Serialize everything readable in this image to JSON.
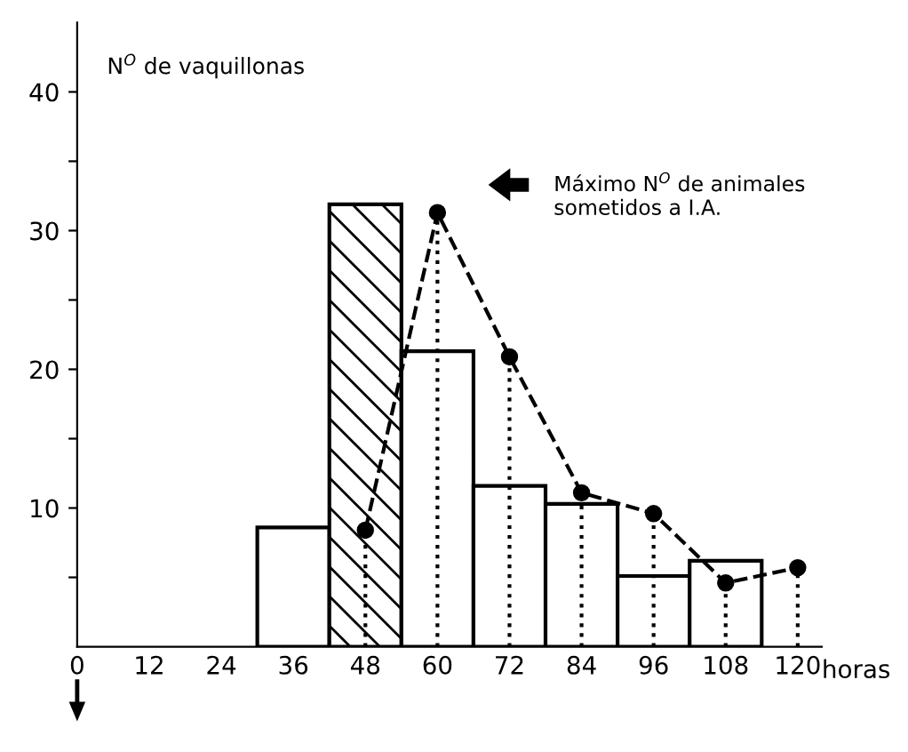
{
  "chart_data": {
    "type": "histogram",
    "ylabel": "N$^{O}$ de vaquillonas",
    "xlabel": "horas",
    "series": [
      {
        "type": "histogram",
        "bins": [
          30,
          42,
          54,
          66,
          78,
          90,
          102,
          114
        ],
        "values": [
          8.6,
          31.9,
          21.3,
          11.6,
          10.3,
          5.1,
          6.2
        ],
        "colors": [
          "#ffffff",
          "#000000",
          "#ffffff",
          "#ffffff",
          "#ffffff",
          "#ffffff",
          "#ffffff"
        ]
      },
      {
        "type": "line",
        "x": [
          48,
          60,
          72,
          84,
          96,
          108,
          120
        ],
        "values": [
          8.4,
          31.3,
          20.9,
          11.1,
          9.6,
          4.6,
          5.7
        ],
        "color": "#000000",
        "line_style": "dashed",
        "marker": "circle",
        "errors": [
          [
            0,
            8.4
          ],
          [
            0,
            31.3
          ],
          [
            0,
            20.9
          ],
          [
            0,
            11.1
          ],
          [
            0,
            9.6
          ],
          [
            0,
            4.6
          ],
          [
            0,
            5.7
          ]
        ]
      }
    ],
    "annotations": [
      "Máximo N$^{O}$ de animales\nsometidos a I.A."
    ],
    "xlim": [
      0,
      124
    ],
    "xticks": [
      0,
      12,
      24,
      36,
      48,
      60,
      72,
      84,
      96,
      108,
      120
    ],
    "ylim": [
      0,
      45
    ],
    "yticks": [
      {
        "value": 5,
        "label": null
      },
      10,
      {
        "value": 15,
        "label": null
      },
      20,
      {
        "value": 25,
        "label": null
      },
      30,
      {
        "value": 35,
        "label": null
      },
      40
    ],
    "grid": false,
    "legend": false
  }
}
